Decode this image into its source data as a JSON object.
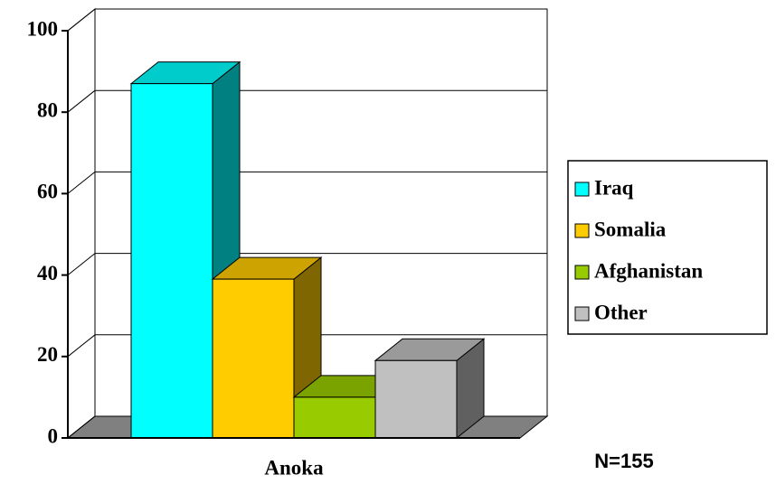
{
  "chart_data": {
    "type": "bar3d",
    "categories": [
      "Anoka"
    ],
    "series": [
      {
        "name": "Iraq",
        "color": "#00ffff",
        "values": [
          87
        ]
      },
      {
        "name": "Somalia",
        "color": "#ffcc00",
        "values": [
          39
        ]
      },
      {
        "name": "Afghanistan",
        "color": "#99cc00",
        "values": [
          10
        ]
      },
      {
        "name": "Other",
        "color": "#c0c0c0",
        "values": [
          19
        ]
      }
    ],
    "ylim": [
      0,
      100
    ],
    "yticks": [
      0,
      20,
      40,
      60,
      80,
      100
    ],
    "grid": true,
    "legend": "right",
    "annotation": "N=155"
  }
}
